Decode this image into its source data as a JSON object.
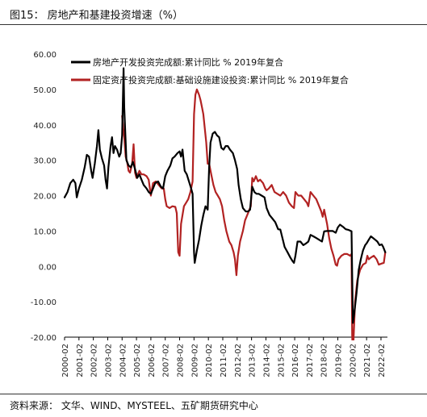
{
  "header": {
    "title": "图15：  房地产和基建投资增速（%）"
  },
  "footer": {
    "source": "资料来源：  文华、WIND、MYSTEEL、五矿期货研究中心"
  },
  "chart_data": {
    "type": "line",
    "ylim": [
      -20,
      60
    ],
    "yticks": [
      "60.00",
      "50.00",
      "40.00",
      "30.00",
      "20.00",
      "10.00",
      "0.00",
      "-10.00",
      "-20.00"
    ],
    "xlim": [
      2000.0,
      2022.45
    ],
    "xticks": [
      "2000-02",
      "2001-02",
      "2002-02",
      "2003-02",
      "2004-02",
      "2005-02",
      "2006-02",
      "2007-02",
      "2008-02",
      "2009-02",
      "2010-02",
      "2011-02",
      "2012-02",
      "2013-02",
      "2014-02",
      "2015-02",
      "2016-02",
      "2017-02",
      "2018-02",
      "2019-02",
      "2020-02",
      "2021-02",
      "2022-02"
    ],
    "legend_position": "top-left",
    "series": [
      {
        "name": "房地产开发投资完成额:累计同比 % 2019年复合",
        "color": "#000000",
        "points": [
          [
            2000.0,
            19.5
          ],
          [
            2000.2,
            21
          ],
          [
            2000.4,
            23.5
          ],
          [
            2000.6,
            24.5
          ],
          [
            2000.75,
            23.5
          ],
          [
            2000.85,
            19.5
          ],
          [
            2001.0,
            22
          ],
          [
            2001.2,
            24.5
          ],
          [
            2001.4,
            28
          ],
          [
            2001.55,
            31.5
          ],
          [
            2001.7,
            31
          ],
          [
            2001.85,
            27
          ],
          [
            2001.95,
            25
          ],
          [
            2002.1,
            29
          ],
          [
            2002.25,
            34
          ],
          [
            2002.35,
            38.5
          ],
          [
            2002.45,
            33
          ],
          [
            2002.6,
            30.5
          ],
          [
            2002.75,
            28.5
          ],
          [
            2002.85,
            24.5
          ],
          [
            2002.95,
            22
          ],
          [
            2003.05,
            28
          ],
          [
            2003.2,
            34
          ],
          [
            2003.3,
            36.5
          ],
          [
            2003.4,
            32
          ],
          [
            2003.5,
            34
          ],
          [
            2003.65,
            33
          ],
          [
            2003.8,
            31
          ],
          [
            2003.9,
            32
          ],
          [
            2004.0,
            37
          ],
          [
            2004.1,
            56
          ],
          [
            2004.15,
            45
          ],
          [
            2004.3,
            30
          ],
          [
            2004.45,
            28.5
          ],
          [
            2004.6,
            28
          ],
          [
            2004.75,
            29.5
          ],
          [
            2004.9,
            27.5
          ],
          [
            2005.05,
            25
          ],
          [
            2005.2,
            26
          ],
          [
            2005.35,
            24.5
          ],
          [
            2005.5,
            23
          ],
          [
            2005.7,
            22
          ],
          [
            2005.85,
            21
          ],
          [
            2006.0,
            20.5
          ],
          [
            2006.15,
            22
          ],
          [
            2006.3,
            23.5
          ],
          [
            2006.5,
            24
          ],
          [
            2006.7,
            22.5
          ],
          [
            2006.85,
            22
          ],
          [
            2007.0,
            25.5
          ],
          [
            2007.15,
            27
          ],
          [
            2007.35,
            28.5
          ],
          [
            2007.5,
            30.5
          ],
          [
            2007.65,
            31
          ],
          [
            2007.85,
            32
          ],
          [
            2008.0,
            32.5
          ],
          [
            2008.1,
            31
          ],
          [
            2008.2,
            33
          ],
          [
            2008.35,
            27
          ],
          [
            2008.5,
            26
          ],
          [
            2008.65,
            24
          ],
          [
            2008.8,
            22
          ],
          [
            2008.9,
            20.5
          ],
          [
            2009.0,
            4
          ],
          [
            2009.05,
            1
          ],
          [
            2009.2,
            4.5
          ],
          [
            2009.35,
            7.5
          ],
          [
            2009.5,
            11.5
          ],
          [
            2009.65,
            14.5
          ],
          [
            2009.8,
            17
          ],
          [
            2009.95,
            16
          ],
          [
            2010.05,
            28
          ],
          [
            2010.15,
            35
          ],
          [
            2010.3,
            37.5
          ],
          [
            2010.45,
            38
          ],
          [
            2010.6,
            37
          ],
          [
            2010.75,
            36.5
          ],
          [
            2010.9,
            33.5
          ],
          [
            2011.05,
            33
          ],
          [
            2011.2,
            34
          ],
          [
            2011.35,
            34
          ],
          [
            2011.5,
            33
          ],
          [
            2011.7,
            32
          ],
          [
            2011.85,
            30
          ],
          [
            2012.0,
            27.5
          ],
          [
            2012.1,
            23
          ],
          [
            2012.25,
            19
          ],
          [
            2012.4,
            16.5
          ],
          [
            2012.6,
            15.5
          ],
          [
            2012.75,
            15.5
          ],
          [
            2012.9,
            16
          ],
          [
            2013.05,
            22.5
          ],
          [
            2013.2,
            21
          ],
          [
            2013.35,
            20.5
          ],
          [
            2013.5,
            20.5
          ],
          [
            2013.7,
            20
          ],
          [
            2013.9,
            19.5
          ],
          [
            2014.05,
            16.5
          ],
          [
            2014.25,
            14.5
          ],
          [
            2014.45,
            13.5
          ],
          [
            2014.65,
            12.5
          ],
          [
            2014.85,
            10.5
          ],
          [
            2015.0,
            10.4
          ],
          [
            2015.15,
            8
          ],
          [
            2015.3,
            5.5
          ],
          [
            2015.5,
            4
          ],
          [
            2015.7,
            2.5
          ],
          [
            2015.85,
            1.5
          ],
          [
            2015.95,
            1
          ],
          [
            2016.05,
            3
          ],
          [
            2016.2,
            7
          ],
          [
            2016.4,
            7
          ],
          [
            2016.6,
            6
          ],
          [
            2016.8,
            6.5
          ],
          [
            2016.95,
            7
          ],
          [
            2017.1,
            8.9
          ],
          [
            2017.3,
            8.5
          ],
          [
            2017.5,
            8
          ],
          [
            2017.7,
            7.5
          ],
          [
            2017.9,
            7
          ],
          [
            2018.05,
            9.9
          ],
          [
            2018.25,
            10
          ],
          [
            2018.45,
            10
          ],
          [
            2018.65,
            10
          ],
          [
            2018.85,
            9.5
          ],
          [
            2019.0,
            11
          ],
          [
            2019.15,
            11.8
          ],
          [
            2019.35,
            11.2
          ],
          [
            2019.55,
            10.5
          ],
          [
            2019.75,
            10.3
          ],
          [
            2019.95,
            9.9
          ],
          [
            2020.05,
            -16
          ],
          [
            2020.15,
            -13
          ],
          [
            2020.3,
            -7.5
          ],
          [
            2020.45,
            -1
          ],
          [
            2020.6,
            2
          ],
          [
            2020.75,
            4.5
          ],
          [
            2020.9,
            6
          ],
          [
            2021.0,
            6.5
          ],
          [
            2021.15,
            7.5
          ],
          [
            2021.3,
            8.5
          ],
          [
            2021.45,
            8
          ],
          [
            2021.6,
            7.5
          ],
          [
            2021.75,
            7
          ],
          [
            2021.9,
            6
          ],
          [
            2022.05,
            6.2
          ],
          [
            2022.15,
            5.5
          ],
          [
            2022.3,
            4
          ]
        ]
      },
      {
        "name": "固定资产投资完成额:基础设施建设投资:累计同比 % 2019年复合",
        "color": "#b22222",
        "points": [
          [
            2004.0,
            42.5
          ],
          [
            2004.08,
            39
          ],
          [
            2004.15,
            36.5
          ],
          [
            2004.25,
            31
          ],
          [
            2004.35,
            29.5
          ],
          [
            2004.45,
            27
          ],
          [
            2004.55,
            26.5
          ],
          [
            2004.7,
            29
          ],
          [
            2004.8,
            34.5
          ],
          [
            2004.9,
            26.5
          ],
          [
            2005.0,
            25
          ],
          [
            2005.2,
            27
          ],
          [
            2005.35,
            26
          ],
          [
            2005.5,
            26
          ],
          [
            2005.7,
            25.5
          ],
          [
            2005.85,
            24.5
          ],
          [
            2006.0,
            20
          ],
          [
            2006.15,
            23.5
          ],
          [
            2006.35,
            24
          ],
          [
            2006.55,
            23
          ],
          [
            2006.75,
            22
          ],
          [
            2006.9,
            22
          ],
          [
            2007.0,
            19
          ],
          [
            2007.1,
            17
          ],
          [
            2007.3,
            16.5
          ],
          [
            2007.5,
            17
          ],
          [
            2007.7,
            16.8
          ],
          [
            2007.8,
            15
          ],
          [
            2007.9,
            4
          ],
          [
            2008.0,
            3
          ],
          [
            2008.1,
            12
          ],
          [
            2008.3,
            17
          ],
          [
            2008.45,
            18
          ],
          [
            2008.6,
            19
          ],
          [
            2008.75,
            21
          ],
          [
            2008.9,
            24
          ],
          [
            2009.0,
            43
          ],
          [
            2009.1,
            48.5
          ],
          [
            2009.2,
            50
          ],
          [
            2009.35,
            48.5
          ],
          [
            2009.45,
            47
          ],
          [
            2009.55,
            45
          ],
          [
            2009.65,
            43
          ],
          [
            2009.75,
            39
          ],
          [
            2009.85,
            35
          ],
          [
            2009.95,
            29
          ],
          [
            2010.05,
            29
          ],
          [
            2010.2,
            26
          ],
          [
            2010.35,
            23
          ],
          [
            2010.5,
            21
          ],
          [
            2010.65,
            20
          ],
          [
            2010.8,
            19
          ],
          [
            2010.95,
            17
          ],
          [
            2011.1,
            13
          ],
          [
            2011.25,
            10
          ],
          [
            2011.45,
            7
          ],
          [
            2011.6,
            6
          ],
          [
            2011.75,
            4
          ],
          [
            2011.85,
            2
          ],
          [
            2011.95,
            -2.5
          ],
          [
            2012.05,
            3
          ],
          [
            2012.2,
            7
          ],
          [
            2012.4,
            10
          ],
          [
            2012.55,
            13
          ],
          [
            2012.75,
            15
          ],
          [
            2012.95,
            17
          ],
          [
            2013.05,
            25
          ],
          [
            2013.15,
            24
          ],
          [
            2013.3,
            25.5
          ],
          [
            2013.45,
            24
          ],
          [
            2013.6,
            24.5
          ],
          [
            2013.8,
            23.5
          ],
          [
            2013.95,
            22
          ],
          [
            2014.05,
            21.5
          ],
          [
            2014.2,
            22
          ],
          [
            2014.4,
            23
          ],
          [
            2014.6,
            21
          ],
          [
            2014.8,
            20.5
          ],
          [
            2015.0,
            20
          ],
          [
            2015.2,
            21
          ],
          [
            2015.4,
            20
          ],
          [
            2015.6,
            18
          ],
          [
            2015.8,
            17
          ],
          [
            2015.95,
            16.5
          ],
          [
            2016.05,
            21
          ],
          [
            2016.25,
            20
          ],
          [
            2016.45,
            20
          ],
          [
            2016.65,
            19
          ],
          [
            2016.85,
            18
          ],
          [
            2016.95,
            17
          ],
          [
            2017.1,
            21
          ],
          [
            2017.3,
            20
          ],
          [
            2017.5,
            19
          ],
          [
            2017.7,
            17
          ],
          [
            2017.85,
            15.5
          ],
          [
            2017.95,
            14
          ],
          [
            2018.05,
            16
          ],
          [
            2018.25,
            12
          ],
          [
            2018.4,
            8
          ],
          [
            2018.55,
            5
          ],
          [
            2018.7,
            3
          ],
          [
            2018.85,
            0.5
          ],
          [
            2018.95,
            0.2
          ],
          [
            2019.05,
            2
          ],
          [
            2019.25,
            3
          ],
          [
            2019.45,
            3.5
          ],
          [
            2019.65,
            3.5
          ],
          [
            2019.85,
            3
          ],
          [
            2019.95,
            3.5
          ],
          [
            2020.0,
            -19.5
          ],
          [
            2020.05,
            -25
          ],
          [
            2020.2,
            -10
          ],
          [
            2020.35,
            -4
          ],
          [
            2020.55,
            -1
          ],
          [
            2020.75,
            0.5
          ],
          [
            2020.95,
            1
          ],
          [
            2021.05,
            3
          ],
          [
            2021.15,
            2
          ],
          [
            2021.3,
            2.5
          ],
          [
            2021.5,
            3
          ],
          [
            2021.7,
            2
          ],
          [
            2021.85,
            0.5
          ],
          [
            2022.05,
            0.8
          ],
          [
            2022.2,
            1
          ],
          [
            2022.3,
            4
          ]
        ]
      }
    ]
  }
}
